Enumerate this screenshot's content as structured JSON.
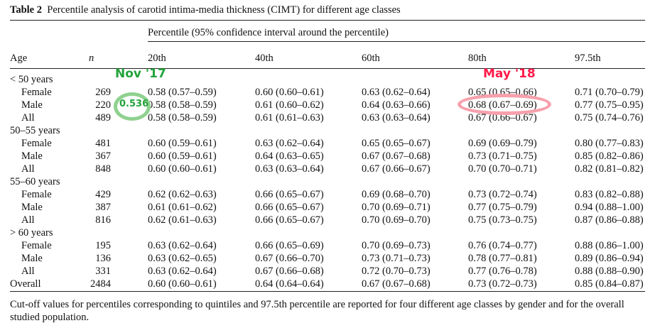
{
  "caption": {
    "label": "Table 2",
    "title": "Percentile analysis of carotid intima-media thickness (CIMT) for different age classes"
  },
  "header": {
    "span_label": "Percentile (95% confidence interval around the percentile)",
    "age": "Age",
    "n": "n",
    "percentiles": [
      "20th",
      "40th",
      "60th",
      "80th",
      "97.5th"
    ]
  },
  "groups": [
    {
      "label": "< 50 years",
      "rows": [
        {
          "label": "Female",
          "n": "269",
          "values": [
            "0.58 (0.57–0.59)",
            "0.60 (0.60–0.61)",
            "0.63 (0.62–0.64)",
            "0.65 (0.65–0.66)",
            "0.71 (0.70–0.79)"
          ]
        },
        {
          "label": "Male",
          "n": "220",
          "values": [
            "0.58 (0.58–0.59)",
            "0.61 (0.60–0.62)",
            "0.64 (0.63–0.66)",
            "0.68 (0.67–0.69)",
            "0.77 (0.75–0.95)"
          ]
        },
        {
          "label": "All",
          "n": "489",
          "values": [
            "0.58 (0.58–0.59)",
            "0.61 (0.61–0.63)",
            "0.63 (0.63–0.64)",
            "0.67 (0.66–0.67)",
            "0.75 (0.74–0.76)"
          ]
        }
      ]
    },
    {
      "label": "50–55 years",
      "rows": [
        {
          "label": "Female",
          "n": "481",
          "values": [
            "0.60 (0.59–0.61)",
            "0.63 (0.62–0.64)",
            "0.65 (0.65–0.67)",
            "0.69 (0.69–0.79)",
            "0.80 (0.77–0.83)"
          ]
        },
        {
          "label": "Male",
          "n": "367",
          "values": [
            "0.60 (0.59–0.61)",
            "0.64 (0.63–0.65)",
            "0.67 (0.67–0.68)",
            "0.73 (0.71–0.75)",
            "0.85 (0.82–0.86)"
          ]
        },
        {
          "label": "All",
          "n": "848",
          "values": [
            "0.60 (0.60–0.61)",
            "0.63 (0.63–0.64)",
            "0.67 (0.66–0.67)",
            "0.70 (0.70–0.71)",
            "0.82 (0.81–0.82)"
          ]
        }
      ]
    },
    {
      "label": "55–60 years",
      "rows": [
        {
          "label": "Female",
          "n": "429",
          "values": [
            "0.62 (0.62–0.63)",
            "0.66 (0.65–0.67)",
            "0.69 (0.68–0.70)",
            "0.73 (0.72–0.74)",
            "0.83 (0.82–0.88)"
          ]
        },
        {
          "label": "Male",
          "n": "387",
          "values": [
            "0.61 (0.61–0.62)",
            "0.66 (0.65–0.67)",
            "0.70 (0.69–0.71)",
            "0.77 (0.75–0.79)",
            "0.94 (0.88–1.00)"
          ]
        },
        {
          "label": "All",
          "n": "816",
          "values": [
            "0.62 (0.61–0.63)",
            "0.66 (0.65–0.67)",
            "0.70 (0.69–0.70)",
            "0.75 (0.73–0.75)",
            "0.87 (0.86–0.88)"
          ]
        }
      ]
    },
    {
      "label": "> 60 years",
      "rows": [
        {
          "label": "Female",
          "n": "195",
          "values": [
            "0.63 (0.62–0.64)",
            "0.66 (0.65–0.69)",
            "0.70 (0.69–0.73)",
            "0.76 (0.74–0.77)",
            "0.88 (0.86–1.00)"
          ]
        },
        {
          "label": "Male",
          "n": "136",
          "values": [
            "0.63 (0.62–0.65)",
            "0.67 (0.66–0.70)",
            "0.73 (0.71–0.73)",
            "0.78 (0.77–0.81)",
            "0.89 (0.86–0.94)"
          ]
        },
        {
          "label": "All",
          "n": "331",
          "values": [
            "0.63 (0.62–0.64)",
            "0.67 (0.66–0.68)",
            "0.72 (0.70–0.73)",
            "0.77 (0.76–0.78)",
            "0.88 (0.88–0.90)"
          ]
        }
      ]
    }
  ],
  "overall": {
    "label": "Overall",
    "n": "2484",
    "values": [
      "0.60 (0.60–0.61)",
      "0.64 (0.64–0.64)",
      "0.67 (0.67–0.68)",
      "0.73 (0.72–0.73)",
      "0.85 (0.84–0.87)"
    ]
  },
  "footnote": "Cut-off values for percentiles corresponding to quintiles and 97.5th percentile are reported for four different age classes by gender and for the overall studied population.",
  "annotations": {
    "nov_label": "Nov '17",
    "nov_value": "0.536",
    "may_label": "May '18",
    "green": "#22a33a",
    "green_ring": "#8fd18f",
    "red": "#ff1a4a",
    "red_ring": "#f7a0ac"
  }
}
